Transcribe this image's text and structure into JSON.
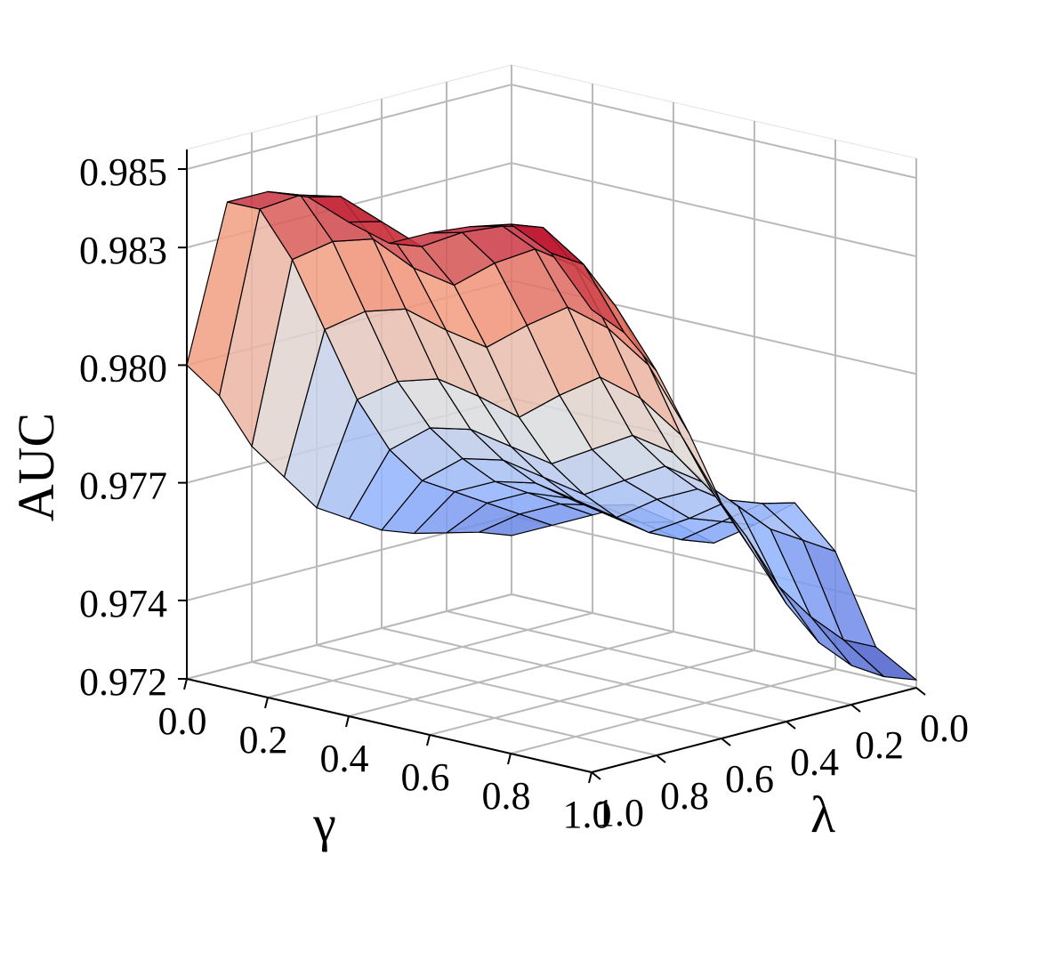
{
  "chart_data": {
    "type": "surface",
    "xlabel": "γ",
    "ylabel": "λ",
    "zlabel": "AUC",
    "x_ticks": [
      "0.0",
      "0.2",
      "0.4",
      "0.6",
      "0.8",
      "1.0"
    ],
    "y_ticks": [
      "0.0",
      "0.2",
      "0.4",
      "0.6",
      "0.8",
      "1.0"
    ],
    "z_ticks": [
      "0.972",
      "0.974",
      "0.977",
      "0.980",
      "0.983",
      "0.985"
    ],
    "xlim": [
      0.0,
      1.0
    ],
    "ylim": [
      0.0,
      1.0
    ],
    "zlim": [
      0.972,
      0.9855
    ],
    "grid": true,
    "colormap": "coolwarm",
    "colormap_stops": [
      "#3b4cc0",
      "#8db0fe",
      "#dddddd",
      "#f49a7b",
      "#b40426"
    ],
    "x": [
      0.0,
      0.1,
      0.2,
      0.3,
      0.4,
      0.5,
      0.6,
      0.7,
      0.8,
      0.9,
      1.0
    ],
    "y": [
      0.0,
      0.1,
      0.2,
      0.3,
      0.4,
      0.5,
      0.6,
      0.7,
      0.8,
      0.9,
      1.0
    ],
    "z": [
      [
        0.9735,
        0.974,
        0.9745,
        0.975,
        0.9748,
        0.9745,
        0.9752,
        0.976,
        0.975,
        0.9728,
        0.9722
      ],
      [
        0.9738,
        0.9745,
        0.975,
        0.9752,
        0.975,
        0.9748,
        0.9755,
        0.9762,
        0.9755,
        0.9732,
        0.9725
      ],
      [
        0.974,
        0.975,
        0.9755,
        0.9756,
        0.9754,
        0.9752,
        0.9758,
        0.9765,
        0.976,
        0.974,
        0.973
      ],
      [
        0.9742,
        0.9755,
        0.976,
        0.9762,
        0.976,
        0.9758,
        0.9765,
        0.977,
        0.9768,
        0.975,
        0.9738
      ],
      [
        0.9745,
        0.976,
        0.9768,
        0.977,
        0.9768,
        0.9766,
        0.9772,
        0.9778,
        0.9776,
        0.9765,
        0.975
      ],
      [
        0.975,
        0.977,
        0.9778,
        0.978,
        0.9778,
        0.9776,
        0.9782,
        0.9788,
        0.9786,
        0.9778,
        0.9765
      ],
      [
        0.9755,
        0.9785,
        0.9792,
        0.9795,
        0.9793,
        0.979,
        0.9798,
        0.9805,
        0.9802,
        0.9795,
        0.978
      ],
      [
        0.9765,
        0.9805,
        0.9812,
        0.9815,
        0.9812,
        0.981,
        0.9818,
        0.9825,
        0.9822,
        0.9815,
        0.98
      ],
      [
        0.9775,
        0.9825,
        0.9832,
        0.9835,
        0.983,
        0.9828,
        0.9836,
        0.9842,
        0.984,
        0.9832,
        0.9818
      ],
      [
        0.979,
        0.984,
        0.9846,
        0.9848,
        0.9844,
        0.984,
        0.9846,
        0.985,
        0.9852,
        0.9845,
        0.983
      ],
      [
        0.98,
        0.9844,
        0.9849,
        0.985,
        0.9846,
        0.9843,
        0.9848,
        0.9852,
        0.9855,
        0.985,
        0.9838
      ]
    ]
  }
}
